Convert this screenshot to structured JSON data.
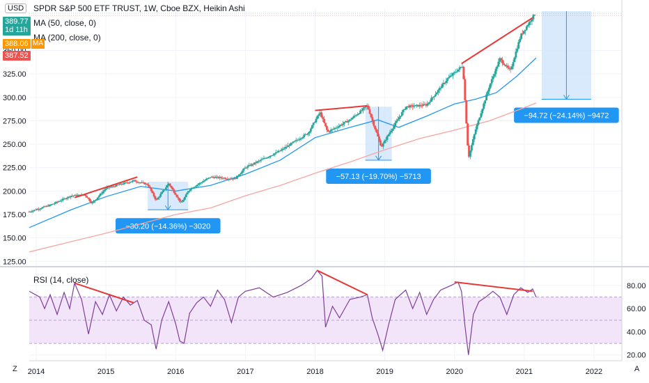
{
  "header": {
    "symbol_title": "SPDR S&P 500 ETF TRUST, 1W, Cboe BZX, Heikin Ashi",
    "ma50_label": "MA (50, close, 0)",
    "ma200_label": "MA (200, close, 0)",
    "rsi_label": "RSI (14, close)",
    "currency": "USD",
    "corner_left": "Z",
    "corner_right": "A",
    "ma200_tag": "MA"
  },
  "price_tags": [
    {
      "label": "389.77",
      "sublabel": "1d 11h",
      "color": "#26a69a"
    },
    {
      "label": "388.06",
      "color": "#ff9800"
    },
    {
      "label": "387.52",
      "color": "#ef5350"
    }
  ],
  "colors": {
    "up": "#26a69a",
    "down": "#ef5350",
    "ma50": "#2196f3",
    "ma200": "#f7a5a0",
    "rsi": "#7e3c98",
    "rsi_band": "#f3e5f9",
    "trendline": "#e53935",
    "measure_fill": "#cfe5fb",
    "measure_label": "#2196f3"
  },
  "chart_data": [
    {
      "type": "candlestick",
      "title": "SPDR S&P 500 ETF TRUST, 1W, Cboe BZX, Heikin Ashi",
      "ylim": [
        120,
        395
      ],
      "xlim": [
        2013.9,
        2022.4
      ],
      "y_ticks": [
        "125.00",
        "150.00",
        "175.00",
        "200.00",
        "225.00",
        "250.00",
        "275.00",
        "300.00",
        "325.00",
        "350.00"
      ],
      "x_ticks": [
        "2014",
        "2015",
        "2016",
        "2017",
        "2018",
        "2019",
        "2020",
        "2021",
        "2022"
      ],
      "price_path": [
        [
          2013.9,
          178
        ],
        [
          2014.2,
          185
        ],
        [
          2014.5,
          195
        ],
        [
          2014.7,
          196
        ],
        [
          2014.8,
          187
        ],
        [
          2015.0,
          203
        ],
        [
          2015.4,
          211
        ],
        [
          2015.6,
          207
        ],
        [
          2015.72,
          190
        ],
        [
          2015.9,
          208
        ],
        [
          2016.08,
          187
        ],
        [
          2016.2,
          202
        ],
        [
          2016.5,
          215
        ],
        [
          2016.85,
          213
        ],
        [
          2017.0,
          225
        ],
        [
          2017.5,
          243
        ],
        [
          2017.9,
          262
        ],
        [
          2018.07,
          284
        ],
        [
          2018.18,
          263
        ],
        [
          2018.5,
          276
        ],
        [
          2018.75,
          291
        ],
        [
          2018.95,
          247
        ],
        [
          2019.05,
          260
        ],
        [
          2019.3,
          290
        ],
        [
          2019.6,
          292
        ],
        [
          2019.9,
          320
        ],
        [
          2020.12,
          334
        ],
        [
          2020.2,
          235
        ],
        [
          2020.3,
          265
        ],
        [
          2020.5,
          312
        ],
        [
          2020.65,
          341
        ],
        [
          2020.8,
          328
        ],
        [
          2020.95,
          366
        ],
        [
          2021.15,
          389
        ]
      ],
      "series": [
        {
          "name": "MA (50, close, 0)",
          "points": [
            [
              2013.9,
              161
            ],
            [
              2014.5,
              180
            ],
            [
              2015.0,
              194
            ],
            [
              2015.5,
              205
            ],
            [
              2016.0,
              200
            ],
            [
              2016.5,
              206
            ],
            [
              2017.0,
              218
            ],
            [
              2017.5,
              233
            ],
            [
              2018.0,
              257
            ],
            [
              2018.5,
              268
            ],
            [
              2018.9,
              276
            ],
            [
              2019.2,
              268
            ],
            [
              2019.6,
              280
            ],
            [
              2020.0,
              293
            ],
            [
              2020.3,
              298
            ],
            [
              2020.6,
              305
            ],
            [
              2020.9,
              323
            ],
            [
              2021.17,
              342
            ]
          ]
        },
        {
          "name": "MA (200, close, 0)",
          "points": [
            [
              2013.9,
              135
            ],
            [
              2014.5,
              146
            ],
            [
              2015.0,
              155
            ],
            [
              2015.5,
              165
            ],
            [
              2016.0,
              175
            ],
            [
              2016.5,
              182
            ],
            [
              2017.0,
              195
            ],
            [
              2017.5,
              206
            ],
            [
              2018.0,
              219
            ],
            [
              2018.5,
              231
            ],
            [
              2019.0,
              244
            ],
            [
              2019.5,
              256
            ],
            [
              2020.0,
              265
            ],
            [
              2020.5,
              275
            ],
            [
              2021.0,
              289
            ],
            [
              2021.17,
              294
            ]
          ]
        }
      ],
      "trendlines": [
        [
          [
            2014.55,
            193
          ],
          [
            2015.45,
            215
          ]
        ],
        [
          [
            2018.0,
            286
          ],
          [
            2018.75,
            291
          ]
        ],
        [
          [
            2020.1,
            336
          ],
          [
            2021.12,
            385
          ]
        ]
      ],
      "measurements": [
        {
          "x": [
            2015.6,
            2016.18
          ],
          "from": 210,
          "to": 180,
          "label": "−30.20 (−14.36%) −3020"
        },
        {
          "x": [
            2018.72,
            2019.1
          ],
          "from": 290,
          "to": 233,
          "label": "−57.13 (−19.70%) −5713"
        },
        {
          "x": [
            2021.25,
            2021.96
          ],
          "from": 392,
          "to": 298,
          "label": "−94.72 (−24.14%) −9472"
        }
      ]
    },
    {
      "type": "line",
      "title": "RSI (14, close)",
      "ylim": [
        15,
        95
      ],
      "band": [
        30,
        70
      ],
      "y_ticks": [
        "20.00",
        "40.00",
        "60.00",
        "80.00"
      ],
      "series": [
        {
          "name": "RSI (14, close)",
          "points": [
            [
              2013.9,
              75
            ],
            [
              2014.05,
              70
            ],
            [
              2014.12,
              60
            ],
            [
              2014.2,
              72
            ],
            [
              2014.3,
              55
            ],
            [
              2014.4,
              74
            ],
            [
              2014.48,
              60
            ],
            [
              2014.55,
              82
            ],
            [
              2014.65,
              68
            ],
            [
              2014.75,
              38
            ],
            [
              2014.85,
              66
            ],
            [
              2014.95,
              55
            ],
            [
              2015.05,
              72
            ],
            [
              2015.15,
              58
            ],
            [
              2015.25,
              70
            ],
            [
              2015.35,
              63
            ],
            [
              2015.45,
              67
            ],
            [
              2015.55,
              50
            ],
            [
              2015.65,
              46
            ],
            [
              2015.72,
              25
            ],
            [
              2015.8,
              50
            ],
            [
              2015.9,
              66
            ],
            [
              2016.0,
              47
            ],
            [
              2016.06,
              32
            ],
            [
              2016.12,
              30
            ],
            [
              2016.2,
              56
            ],
            [
              2016.3,
              65
            ],
            [
              2016.4,
              70
            ],
            [
              2016.5,
              62
            ],
            [
              2016.6,
              76
            ],
            [
              2016.7,
              68
            ],
            [
              2016.8,
              48
            ],
            [
              2016.9,
              70
            ],
            [
              2017.0,
              75
            ],
            [
              2017.2,
              78
            ],
            [
              2017.4,
              70
            ],
            [
              2017.6,
              74
            ],
            [
              2017.8,
              80
            ],
            [
              2017.95,
              86
            ],
            [
              2018.03,
              93
            ],
            [
              2018.1,
              88
            ],
            [
              2018.15,
              44
            ],
            [
              2018.25,
              62
            ],
            [
              2018.35,
              52
            ],
            [
              2018.5,
              68
            ],
            [
              2018.65,
              70
            ],
            [
              2018.75,
              72
            ],
            [
              2018.82,
              52
            ],
            [
              2018.9,
              38
            ],
            [
              2018.97,
              24
            ],
            [
              2019.05,
              45
            ],
            [
              2019.15,
              68
            ],
            [
              2019.3,
              76
            ],
            [
              2019.4,
              60
            ],
            [
              2019.5,
              74
            ],
            [
              2019.6,
              55
            ],
            [
              2019.7,
              68
            ],
            [
              2019.8,
              76
            ],
            [
              2019.95,
              80
            ],
            [
              2020.05,
              83
            ],
            [
              2020.1,
              75
            ],
            [
              2020.15,
              45
            ],
            [
              2020.2,
              20
            ],
            [
              2020.27,
              55
            ],
            [
              2020.35,
              66
            ],
            [
              2020.45,
              70
            ],
            [
              2020.55,
              75
            ],
            [
              2020.65,
              70
            ],
            [
              2020.75,
              55
            ],
            [
              2020.85,
              72
            ],
            [
              2020.95,
              78
            ],
            [
              2021.05,
              74
            ],
            [
              2021.12,
              77
            ],
            [
              2021.17,
              70
            ]
          ]
        }
      ],
      "trendlines": [
        [
          [
            2014.55,
            82
          ],
          [
            2015.4,
            65
          ]
        ],
        [
          [
            2018.03,
            93
          ],
          [
            2018.75,
            72
          ]
        ],
        [
          [
            2020.0,
            83
          ],
          [
            2021.12,
            75
          ]
        ]
      ]
    }
  ]
}
